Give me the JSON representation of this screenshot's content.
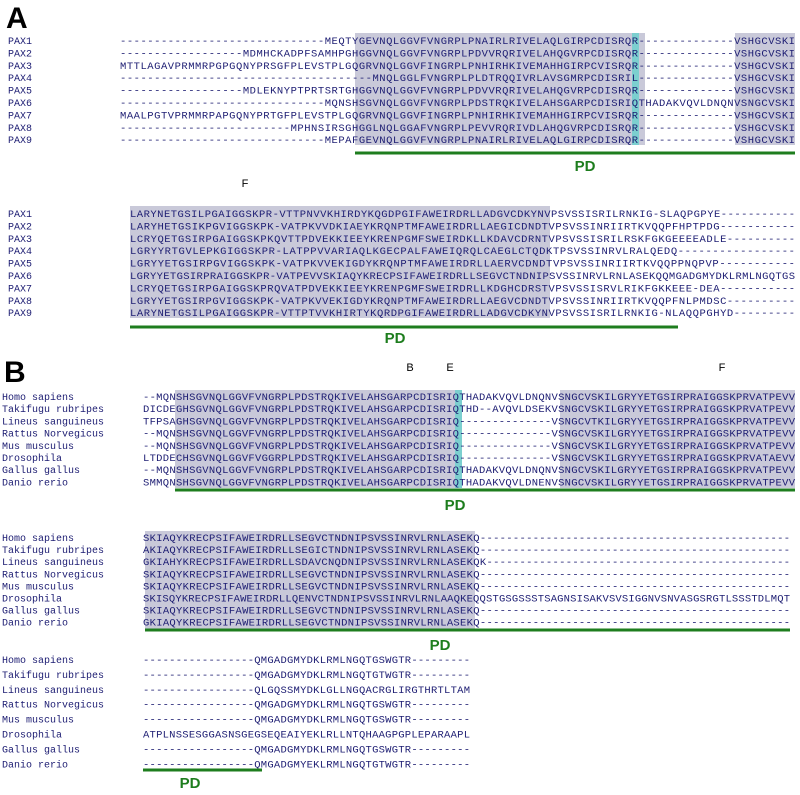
{
  "panel_a": {
    "label": "A",
    "blocks": [
      {
        "markers": [],
        "domain_label": "PD",
        "rows": [
          {
            "name": "PAX1",
            "seq": "------------------------------MEQTYGEVNQLGGVFVNGRPLPNAIRLRIVELAQLGIRPCDISRQR--------------VSHGCVSKI"
          },
          {
            "name": "PAX2",
            "seq": "------------------MDMHCKADPFSAMHPGHGGVNQLGGVFVNGRPLPDVVRQRIVELAHQGVRPCDISRQR--------------VSHGCVSKI"
          },
          {
            "name": "PAX3",
            "seq": "MTTLAGAVPRMMRPGPGQNYPRSGFPLEVSTPLGQGRVNQLGGVFINGRPLPNHIRHKIVEMAHHGIRPCVISRQR--------------VSHGCVSKI"
          },
          {
            "name": "PAX4",
            "seq": "-------------------------------------MNQLGGLFVNGRPLPLDTRQQIVRLAVSGMRPCDISRIL--------------VSHGCVSKI"
          },
          {
            "name": "PAX5",
            "seq": "------------------MDLEKNYPTPRTSRTGHGGVNQLGGVFVNGRPLPDVVRQRIVELAHQGVRPCDISRQR--------------VSHGCVSKI"
          },
          {
            "name": "PAX6",
            "seq": "------------------------------MQNSHSGVNQLGGVFVNGRPLPDSTRQKIVELAHSGARPCDISRIQTHADAKVQVLDNQNVSNGCVSKI"
          },
          {
            "name": "PAX7",
            "seq": "MAALPGTVPRMMRPAPGQNYPRTGFPLEVSTPLGQGRVNQLGGVFINGRPLPNHIRHKIVEMAHHGIRPCVISRQR--------------VSHGCVSKI"
          },
          {
            "name": "PAX8",
            "seq": "-------------------------MPHNSIRSGHGGLNQLGGAFVNGRPLPEVVRQRIVDLAHQGVRPCDISRQR--------------VSHGCVSKI"
          },
          {
            "name": "PAX9",
            "seq": "------------------------------MEPAFGEVNQLGGVFVNGRPLPNAIRLRIVELAQLGIRPCDISRQR--------------VSHGCVSKI"
          }
        ]
      },
      {
        "markers": [
          "F"
        ],
        "domain_label": "PD",
        "rows": [
          {
            "name": "PAX1",
            "seq": "LARYNETGSILPGAIGGSKPR-VTTPNVVKHIRDYKQGDPGIFAWEIRDRLLADGVCDKYNVPSVSSISRILRNKIG-SLAQPGPYE-----------"
          },
          {
            "name": "PAX2",
            "seq": "LARYHETGSIKPGVIGGSKPK-VATPKVVDKIAEYKRQNPTMFAWEIRDRLLAEGICDNDTVPSVSSINRIIRTKVQQPFHPTPDG-----------"
          },
          {
            "name": "PAX3",
            "seq": "LCRYQETGSIRPGAIGGSKPKQVTTPDVEKKIEEYKRENPGMFSWEIRDKLLKDAVCDRNTVPSVSSISRILRSKFGKGEEEEADLE----------"
          },
          {
            "name": "PAX4",
            "seq": "LGRYYRTGVLEPKGIGGSKPR-LATPPVVARIAQLKGECPALFAWEIQRQLCAEGLCTQDKTPSVSSINRVLRALQEDQ-----------------"
          },
          {
            "name": "PAX5",
            "seq": "LGRYYETGSIRPGVIGGSKPK-VATPKVVEKIGDYKRQNPTMFAWEIRDRLLAERVCDNDTVPSVSSINRIIRTKVQQPPNQPVP-----------"
          },
          {
            "name": "PAX6",
            "seq": "LGRYYETGSIRPRAIGGSKPR-VATPEVVSKIAQYKRECPSIFAWEIRDRLLSEGVCTNDNIPSVSSINRVLRNLASEKQQMGADGMYDKLRMLNGQTGS"
          },
          {
            "name": "PAX7",
            "seq": "LCRYQETGSIRPGAIGGSKPRQVATPDVEKKIEEYKRENPGMFSWEIRDRLLKDGHCDRSTVPSVSSISRVLRIKFGKKEEE-DEA-----------"
          },
          {
            "name": "PAX8",
            "seq": "LGRYYETGSIRPGVIGGSKPK-VATPKVVEKIGDYKRQNPTMFAWEIRDRLLAEGVCDNDTVPSVSSINRIIRTKVQQPFNLPMDSC----------"
          },
          {
            "name": "PAX9",
            "seq": "LARYNETGSILPGAIGGSKPR-VTTPTVVKHIRTYKQRDPGIFAWEIRDRLLADGVCDKYNVPSVSSISRILRNKIG-NLAQQPGHYD---------"
          }
        ]
      }
    ]
  },
  "panel_b": {
    "label": "B",
    "blocks": [
      {
        "markers": [
          "B",
          "E",
          "F"
        ],
        "domain_label": "PD",
        "rows": [
          {
            "name": "Homo sapiens",
            "seq": "--MQNSHSGVNQLGGVFVNGRPLPDSTRQKIVELAHSGARPCDISRIQTHADAKVQVLDNQNVSNGCVSKILGRYYETGSIRPRAIGGSKPRVATPEVV"
          },
          {
            "name": "Takifugu rubripes",
            "seq": "DICDEGHSGVNQLGGVFVNGRPLPDSTRQKIVELAHSGARPCDISRIQTHD--AVQVLDSEKVSNGCVSKILGRYYETGSIRPRAIGGSKPRVATPEVV"
          },
          {
            "name": "Lineus sanguineus",
            "seq": "TFPSAGHSGVNQLGGVFVNGRPLPDSTRQKIVELAHSGARPCDISRIQ--------------VSNGCVTKILGRYYETGSIRPRAIGGSKPRVATPEVV"
          },
          {
            "name": "Rattus Norvegicus",
            "seq": "--MQNSHSGVNQLGGVFVNGRPLPDSTRQKIVELAHSGARPCDISRIQ--------------VSNGCVSKILGRYYETGSIRPRAIGGSKPRVATPEVV"
          },
          {
            "name": "Mus musculus",
            "seq": "--MQNSHSGVNQLGGVFVNGRPLPDSTRQKIVELAHSGARPCDISRIQ--------------VSNGCVSKILGRYYETGSIRPRAIGGSKPRVATPEVV"
          },
          {
            "name": "Drosophila",
            "seq": "LTDDECHSGVNQLGGVFVGGRPLPDSTRQKIVELAHSGARPCDISRIQ--------------VSNGCVSKILGRYYETGSIRPRAIGGSKPRVATAEVV"
          },
          {
            "name": "Gallus gallus",
            "seq": "--MQNSHSGVNQLGGVFVNGRPLPDSTRQKIVELAHSGARPCDISRIQTHADAKVQVLDNQNVSNGCVSKILGRYYETGSIRPRAIGGSKPRVATPEVV"
          },
          {
            "name": "Danio rerio",
            "seq": "SMMQNSHSGVNQLGGVFVNGRPLPDSTRQKIVELAHSGARPCDISRIQTHADAKVQVLDNENVSNGCVSKILGRYYETGSIRPRAIGGSKPRVATPEVV"
          }
        ]
      },
      {
        "markers": [],
        "domain_label": "PD",
        "rows": [
          {
            "name": "Homo sapiens",
            "seq": "SKIAQYKRECPSIFAWEIRDRLLSEGVCTNDNIPSVSSINRVLRNLASEKQ-----------------------------------------------"
          },
          {
            "name": "Takifugu rubripes",
            "seq": "AKIAQYKRECPSIFAWEIRDRLLSEGICTNDNIPSVSSINRVLRNLASEKQ-----------------------------------------------"
          },
          {
            "name": "Lineus sanguineus",
            "seq": "GKIAHYKRECPSIFAWEIRDRLLSDAVCNQDNIPSVSSINRVLRNLASEKQK----------------------------------------------"
          },
          {
            "name": "Rattus Norvegicus",
            "seq": "SKIAQYKRECPSIFAWEIRDRLLSEGVCTNDNIPSVSSINRVLRNLASEKQ-----------------------------------------------"
          },
          {
            "name": "Mus musculus",
            "seq": "SKIAQYKRECPSIFAWEIRDRLLSEGVCTNDNIPSVSSINRVLRNLASEKQ-----------------------------------------------"
          },
          {
            "name": "Drosophila",
            "seq": "SKISQYKRECPSIFAWEIRDRLLQENVCTNDNIPSVSSINRVLRNLAAQKEQQSTGSGSSSTSAGNSISAKVSVSIGGNVSNVASGSRGTLSSSTDLMQT"
          },
          {
            "name": "Gallus gallus",
            "seq": "SKIAQYKRECPSIFAWEIRDRLLSEGVCTNDNIPSVSSINRVLRNLASEKQ-----------------------------------------------"
          },
          {
            "name": "Danio rerio",
            "seq": "GKIAQYKRECPSIFAWEIRDRLLSEGVCTNDNIPSVSSINRVLRNLASEKQ-----------------------------------------------"
          }
        ]
      },
      {
        "markers": [],
        "domain_label": "PD",
        "rows": [
          {
            "name": "Homo sapiens",
            "seq": "-----------------QMGADGMYDKLRMLNGQTGSWGTR---------"
          },
          {
            "name": "Takifugu rubripes",
            "seq": "-----------------QMGADGMYDKLRMLNGQTGTWGTR---------"
          },
          {
            "name": "Lineus sanguineus",
            "seq": "-----------------QLGQSSMYDKLGLLNGQACRGLIRGTHRTLTAM"
          },
          {
            "name": "Rattus Norvegicus",
            "seq": "-----------------QMGADGMYDKLRMLNGQTGSWGTR---------"
          },
          {
            "name": "Mus musculus",
            "seq": "-----------------QMGADGMYDKLRMLNGQTGSWGTR---------"
          },
          {
            "name": "Drosophila",
            "seq": "ATPLNSSESGGASNSGEGSEQEAIYEKLRLLNTQHAAGPGPLEPARAAPL"
          },
          {
            "name": "Gallus gallus",
            "seq": "-----------------QMGADGMYDKLRMLNGQTGSWGTR---------"
          },
          {
            "name": "Danio rerio",
            "seq": "-----------------QMGADGMYEKLRMLNGQTGTWGTR---------"
          }
        ]
      }
    ]
  }
}
